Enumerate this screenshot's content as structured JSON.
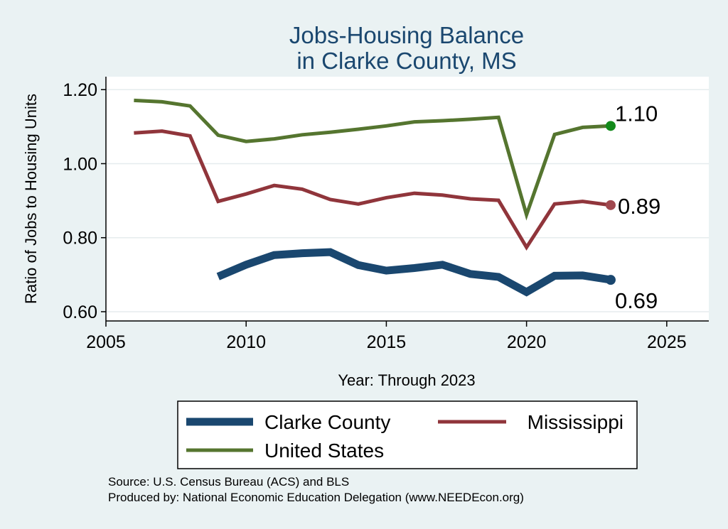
{
  "chart_data": {
    "type": "line",
    "title": [
      "Jobs-Housing Balance",
      "in Clarke County, MS"
    ],
    "xlabel": "Year: Through 2023",
    "ylabel": "Ratio of Jobs to Housing Units",
    "xlim": [
      2005,
      2026.5
    ],
    "ylim": [
      0.575,
      1.235
    ],
    "x_ticks": [
      2005,
      2010,
      2015,
      2020,
      2025
    ],
    "y_ticks": [
      0.6,
      0.8,
      1.0,
      1.2
    ],
    "y_tick_labels": [
      "0.60",
      "0.80",
      "1.00",
      "1.20"
    ],
    "grid": true,
    "legend_position": "bottom",
    "series": [
      {
        "name": "Clarke County",
        "color": "#1a476f",
        "width": 11,
        "x": [
          2009,
          2010,
          2011,
          2012,
          2013,
          2014,
          2015,
          2016,
          2017,
          2018,
          2019,
          2020,
          2021,
          2022,
          2023
        ],
        "values": [
          0.695,
          0.727,
          0.753,
          0.758,
          0.761,
          0.726,
          0.711,
          0.718,
          0.727,
          0.702,
          0.694,
          0.653,
          0.697,
          0.698,
          0.686
        ],
        "end_label": "0.69",
        "end_color": "#1a476f"
      },
      {
        "name": "Mississippi",
        "color": "#90353b",
        "width": 5,
        "x": [
          2006,
          2007,
          2008,
          2009,
          2010,
          2011,
          2012,
          2013,
          2014,
          2015,
          2016,
          2017,
          2018,
          2019,
          2020,
          2021,
          2022,
          2023
        ],
        "values": [
          1.083,
          1.088,
          1.075,
          0.898,
          0.918,
          0.941,
          0.931,
          0.903,
          0.891,
          0.908,
          0.92,
          0.915,
          0.905,
          0.901,
          0.774,
          0.891,
          0.898,
          0.888
        ],
        "end_label": "0.89",
        "end_color": "#a0484f"
      },
      {
        "name": "United States",
        "color": "#55752f",
        "width": 5,
        "x": [
          2006,
          2007,
          2008,
          2009,
          2010,
          2011,
          2012,
          2013,
          2014,
          2015,
          2016,
          2017,
          2018,
          2019,
          2020,
          2021,
          2022,
          2023
        ],
        "values": [
          1.171,
          1.167,
          1.156,
          1.077,
          1.06,
          1.067,
          1.078,
          1.085,
          1.093,
          1.102,
          1.113,
          1.116,
          1.12,
          1.125,
          0.862,
          1.079,
          1.098,
          1.102
        ],
        "end_label": "1.10",
        "end_color": "#138a1b"
      }
    ],
    "notes": [
      "Source: U.S. Census Bureau (ACS) and BLS",
      "Produced by: National Economic Education Delegation (www.NEEDEcon.org)"
    ]
  }
}
